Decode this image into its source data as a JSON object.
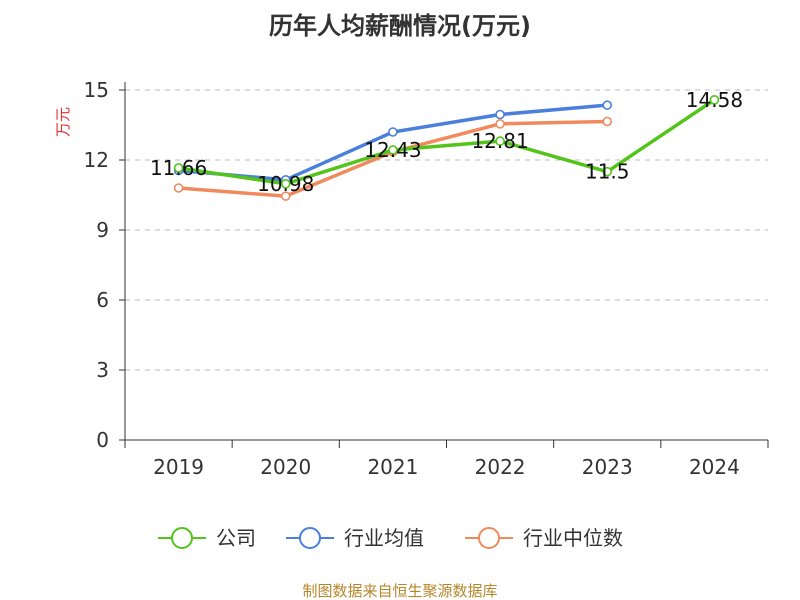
{
  "chart_data": {
    "type": "line",
    "title": "历年人均薪酬情况(万元)",
    "ylabel": "万元",
    "xlabel": "",
    "categories": [
      "2019",
      "2020",
      "2021",
      "2022",
      "2023",
      "2024"
    ],
    "ylim": [
      0,
      15
    ],
    "yticks": [
      0,
      3,
      6,
      9,
      12,
      15
    ],
    "grid": true,
    "legend_position": "bottom",
    "series": [
      {
        "name": "公司",
        "color": "#52c41a",
        "values": [
          11.66,
          10.98,
          12.43,
          12.81,
          11.5,
          14.58
        ],
        "labels": [
          "11.66",
          "10.98",
          "12.43",
          "12.81",
          "11.5",
          "14.58"
        ]
      },
      {
        "name": "行业均值",
        "color": "#4a7fdc",
        "values": [
          11.55,
          11.15,
          13.2,
          13.95,
          14.35,
          null
        ]
      },
      {
        "name": "行业中位数",
        "color": "#f08a5d",
        "values": [
          10.8,
          10.45,
          12.35,
          13.55,
          13.65,
          null
        ]
      }
    ],
    "source": "制图数据来自恒生聚源数据库"
  }
}
